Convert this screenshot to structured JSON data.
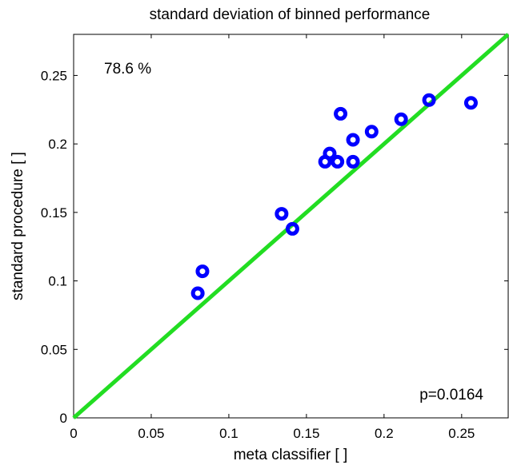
{
  "chart_data": {
    "type": "scatter",
    "title": "standard deviation of binned performance",
    "xlabel": "meta classifier [ ]",
    "ylabel": "standard procedure [ ]",
    "xlim": [
      0,
      0.28
    ],
    "ylim": [
      0,
      0.28
    ],
    "xticks": [
      0,
      0.05,
      0.1,
      0.15,
      0.2,
      0.25
    ],
    "xtick_labels": [
      "0",
      "0.05",
      "0.1",
      "0.15",
      "0.2",
      "0.25"
    ],
    "yticks": [
      0,
      0.05,
      0.1,
      0.15,
      0.2,
      0.25
    ],
    "ytick_labels": [
      "0",
      "0.05",
      "0.1",
      "0.15",
      "0.2",
      "0.25"
    ],
    "grid": false,
    "points": [
      {
        "x": 0.08,
        "y": 0.091
      },
      {
        "x": 0.083,
        "y": 0.107
      },
      {
        "x": 0.134,
        "y": 0.149
      },
      {
        "x": 0.141,
        "y": 0.138
      },
      {
        "x": 0.162,
        "y": 0.187
      },
      {
        "x": 0.165,
        "y": 0.193
      },
      {
        "x": 0.17,
        "y": 0.187
      },
      {
        "x": 0.172,
        "y": 0.222
      },
      {
        "x": 0.18,
        "y": 0.203
      },
      {
        "x": 0.18,
        "y": 0.187
      },
      {
        "x": 0.192,
        "y": 0.209
      },
      {
        "x": 0.211,
        "y": 0.218
      },
      {
        "x": 0.229,
        "y": 0.232
      },
      {
        "x": 0.256,
        "y": 0.23
      }
    ],
    "reference_line": {
      "x": [
        0,
        0.28
      ],
      "y": [
        0,
        0.28
      ]
    },
    "marker_color": "#0000ff",
    "line_color": "#22dd22",
    "annotations": {
      "top_left": "78.6 %",
      "bottom_right": "p=0.0164"
    }
  }
}
